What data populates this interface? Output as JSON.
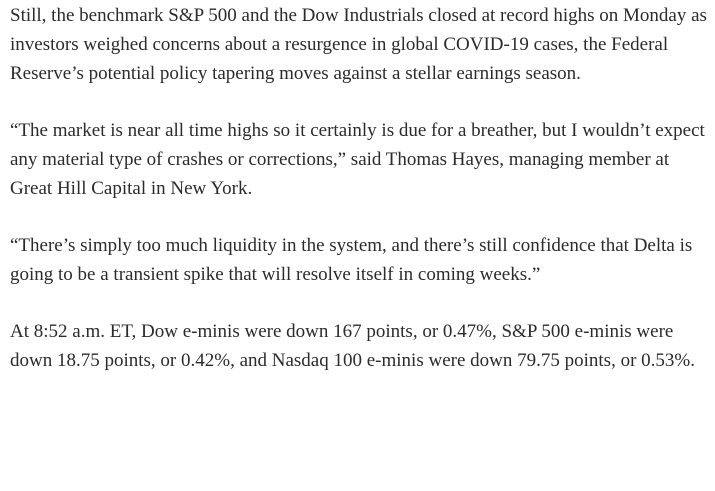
{
  "article": {
    "paragraphs": [
      "Still, the benchmark S&P 500 and the Dow Industrials closed at record highs on Monday as investors weighed concerns about a resurgence in global COVID-19 cases, the Federal Reserve’s potential policy tapering moves against a stellar earnings season.",
      "“The market is near all time highs so it certainly is due for a breather, but I wouldn’t expect any material type of crashes or corrections,” said Thomas Hayes, managing member at Great Hill Capital in New York.",
      "“There’s simply too much liquidity in the system, and there’s still confidence that Delta is going to be a transient spike that will resolve itself in coming weeks.”",
      "At 8:52 a.m. ET, Dow e-minis were down 167 points, or 0.47%, S&P 500 e-minis were down 18.75 points, or 0.42%, and Nasdaq 100 e-minis were down 79.75 points, or 0.53%."
    ]
  }
}
